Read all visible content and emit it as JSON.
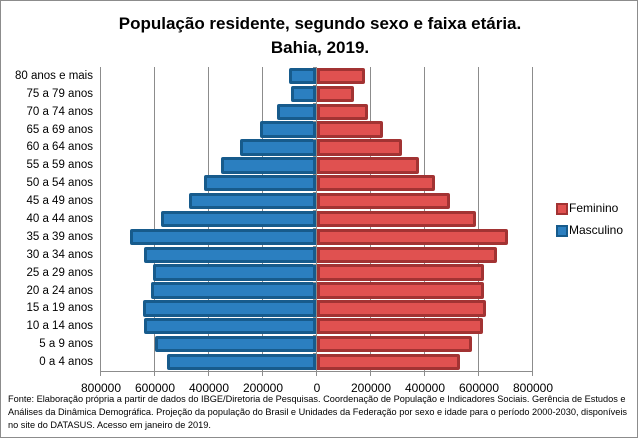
{
  "chart_data": {
    "type": "bar",
    "orientation": "horizontal",
    "subtype": "population-pyramid",
    "title": "População residente, segundo sexo e faixa etária.",
    "subtitle": "Bahia, 2019.",
    "xlabel": "",
    "ylabel": "",
    "xlim": [
      -800000,
      800000
    ],
    "x_tick_labels": [
      "800000",
      "600000",
      "400000",
      "200000",
      "0",
      "200000",
      "400000",
      "600000",
      "800000"
    ],
    "x_tick_values": [
      -800000,
      -600000,
      -400000,
      -200000,
      0,
      200000,
      400000,
      600000,
      800000
    ],
    "grid": "vertical major gridlines",
    "legend_position": "right",
    "categories": [
      "80 anos e mais",
      "75 a 79 anos",
      "70 a 74 anos",
      "65 a 69 anos",
      "60 a 64 anos",
      "55 a 59 anos",
      "50 a 54 anos",
      "45 a 49 anos",
      "40 a 44 anos",
      "35 a 39 anos",
      "30 a 34 anos",
      "25 a 29 anos",
      "20 a 24 anos",
      "15 a 19 anos",
      "10 a 14 anos",
      "5 a 9 anos",
      "0 a 4 anos"
    ],
    "series": [
      {
        "name": "Feminino",
        "color": "#e05150",
        "border": "#a23333",
        "values": [
          179000,
          137000,
          190000,
          246000,
          316000,
          379000,
          437000,
          493000,
          588000,
          707000,
          666000,
          620000,
          617000,
          626000,
          615000,
          574000,
          531000
        ]
      },
      {
        "name": "Masculino",
        "color": "#2b7fc0",
        "border": "#175b8c",
        "values": [
          101000,
          93000,
          146000,
          209000,
          281000,
          353000,
          416000,
          470000,
          575000,
          690000,
          638000,
          604000,
          612000,
          642000,
          638000,
          597000,
          553000
        ]
      }
    ],
    "note": "Masculino plotted to the left of zero (axis labels shown as absolute values)."
  },
  "legend": {
    "items": [
      {
        "label": "Feminino",
        "color": "#e05150",
        "border": "#a23333"
      },
      {
        "label": "Masculino",
        "color": "#2b7fc0",
        "border": "#175b8c"
      }
    ]
  },
  "footer": {
    "source": "Fonte:  Elaboração própria a partir de dados do  IBGE/Diretoria de Pesquisas. Coordenação de População e Indicadores Sociais. Gerência de Estudos e Análises da Dinâmica Demográfica. Projeção da população do Brasil e Unidades da Federação por sexo e idade para o período 2000-2030, disponíveis no site do DATASUS. Acesso em janeiro de 2019."
  }
}
